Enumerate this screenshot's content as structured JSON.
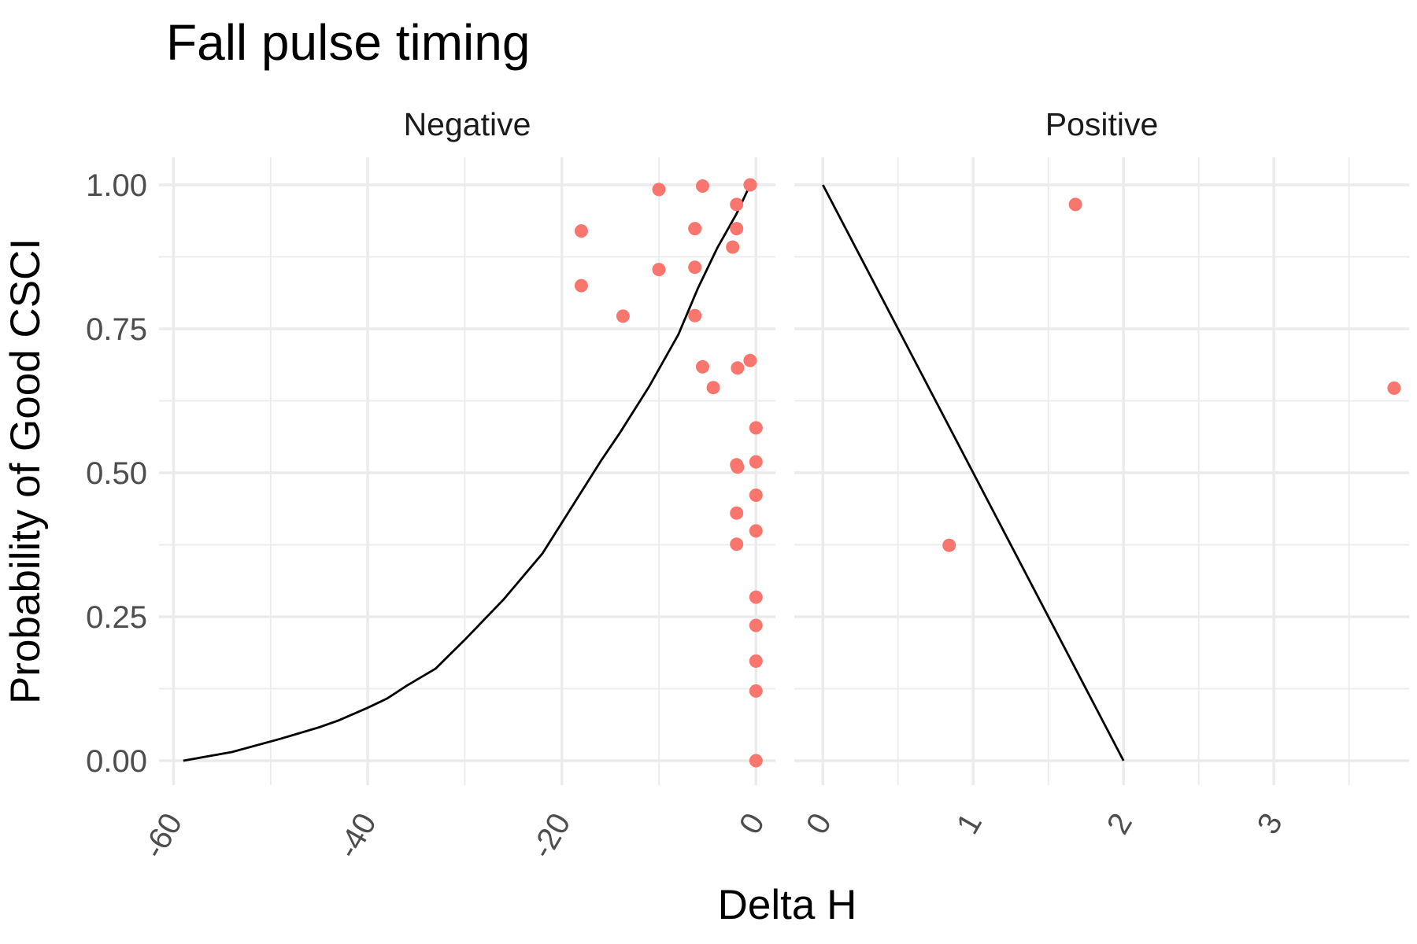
{
  "chart_data": {
    "type": "scatter",
    "title": "Fall pulse timing",
    "xlabel": "Delta H",
    "ylabel": "Probability of Good CSCI",
    "ylim": [
      0,
      1
    ],
    "y_ticks": [
      "0.00",
      "0.25",
      "0.50",
      "0.75",
      "1.00"
    ],
    "y_tick_values": [
      0,
      0.25,
      0.5,
      0.75,
      1.0
    ],
    "grid": true,
    "point_color": "#F8766D",
    "line_color": "#000000",
    "panels": [
      {
        "strip_label": "Negative",
        "xlim": [
          -61.5,
          2.0
        ],
        "x_ticks": [
          "-60",
          "-40",
          "-20",
          "0"
        ],
        "x_tick_values": [
          -60,
          -40,
          -20,
          0
        ],
        "points": [
          [
            -0.6,
            1.0
          ],
          [
            -5.5,
            0.998
          ],
          [
            -10.0,
            0.992
          ],
          [
            -2.0,
            0.966
          ],
          [
            -6.3,
            0.924
          ],
          [
            -2.0,
            0.924
          ],
          [
            -18.0,
            0.92
          ],
          [
            -2.4,
            0.892
          ],
          [
            -6.3,
            0.857
          ],
          [
            -10.0,
            0.853
          ],
          [
            -18.0,
            0.825
          ],
          [
            -6.3,
            0.773
          ],
          [
            -13.7,
            0.772
          ],
          [
            -0.6,
            0.695
          ],
          [
            -5.5,
            0.684
          ],
          [
            -1.9,
            0.682
          ],
          [
            -4.4,
            0.648
          ],
          [
            0.0,
            0.578
          ],
          [
            0.0,
            0.519
          ],
          [
            -2.0,
            0.514
          ],
          [
            -1.9,
            0.51
          ],
          [
            0.0,
            0.461
          ],
          [
            -2.0,
            0.43
          ],
          [
            0.0,
            0.399
          ],
          [
            -2.0,
            0.376
          ],
          [
            0.0,
            0.284
          ],
          [
            0.0,
            0.235
          ],
          [
            0.0,
            0.173
          ],
          [
            0.0,
            0.121
          ],
          [
            0.0,
            0.0
          ]
        ],
        "line": [
          [
            -59,
            0.0
          ],
          [
            -54,
            0.015
          ],
          [
            -49,
            0.038
          ],
          [
            -45,
            0.058
          ],
          [
            -43,
            0.07
          ],
          [
            -40,
            0.092
          ],
          [
            -38,
            0.108
          ],
          [
            -36,
            0.13
          ],
          [
            -33,
            0.16
          ],
          [
            -30,
            0.21
          ],
          [
            -26,
            0.28
          ],
          [
            -22,
            0.36
          ],
          [
            -19,
            0.44
          ],
          [
            -16,
            0.52
          ],
          [
            -14,
            0.57
          ],
          [
            -11,
            0.65
          ],
          [
            -8,
            0.74
          ],
          [
            -6,
            0.82
          ],
          [
            -4,
            0.89
          ],
          [
            -2,
            0.95
          ],
          [
            -0.6,
            1.0
          ]
        ]
      },
      {
        "strip_label": "Positive",
        "xlim": [
          -0.19,
          3.9
        ],
        "x_ticks": [
          "0",
          "1",
          "2",
          "3"
        ],
        "x_tick_values": [
          0,
          1,
          2,
          3
        ],
        "points": [
          [
            1.68,
            0.966
          ],
          [
            3.8,
            0.647
          ],
          [
            0.84,
            0.374
          ]
        ],
        "line": [
          [
            0,
            1.0
          ],
          [
            2,
            0.0
          ]
        ]
      }
    ]
  }
}
